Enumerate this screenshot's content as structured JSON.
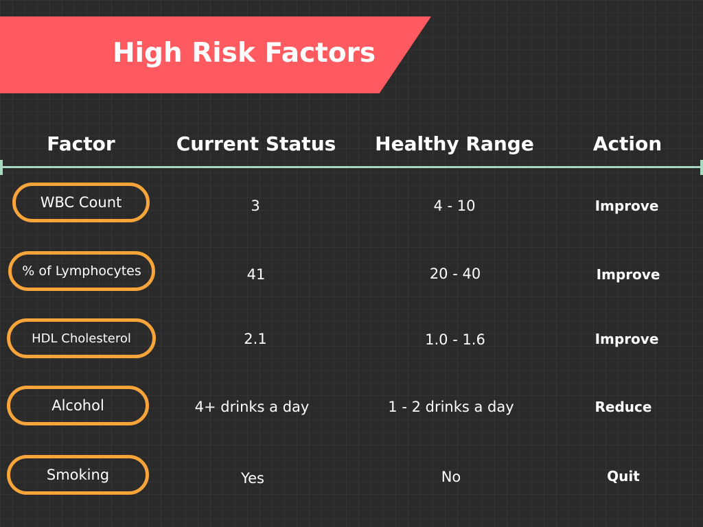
{
  "title": "High Risk Factors",
  "colors": {
    "banner": "#ff5a5f",
    "pill_border": "#f7a43a",
    "divider": "#a8d8c0",
    "background": "#2a2a2a"
  },
  "headers": {
    "factor": "Factor",
    "current": "Current Status",
    "healthy": "Healthy Range",
    "action": "Action"
  },
  "rows": [
    {
      "factor": "WBC Count",
      "current": "3",
      "healthy": "4 - 10",
      "action": "Improve"
    },
    {
      "factor": "% of Lymphocytes",
      "current": "41",
      "healthy": "20 - 40",
      "action": "Improve"
    },
    {
      "factor": "HDL Cholesterol",
      "current": "2.1",
      "healthy": "1.0 - 1.6",
      "action": "Improve"
    },
    {
      "factor": "Alcohol",
      "current": "4+ drinks a day",
      "healthy": "1 - 2 drinks a day",
      "action": "Reduce"
    },
    {
      "factor": "Smoking",
      "current": "Yes",
      "healthy": "No",
      "action": "Quit"
    }
  ]
}
